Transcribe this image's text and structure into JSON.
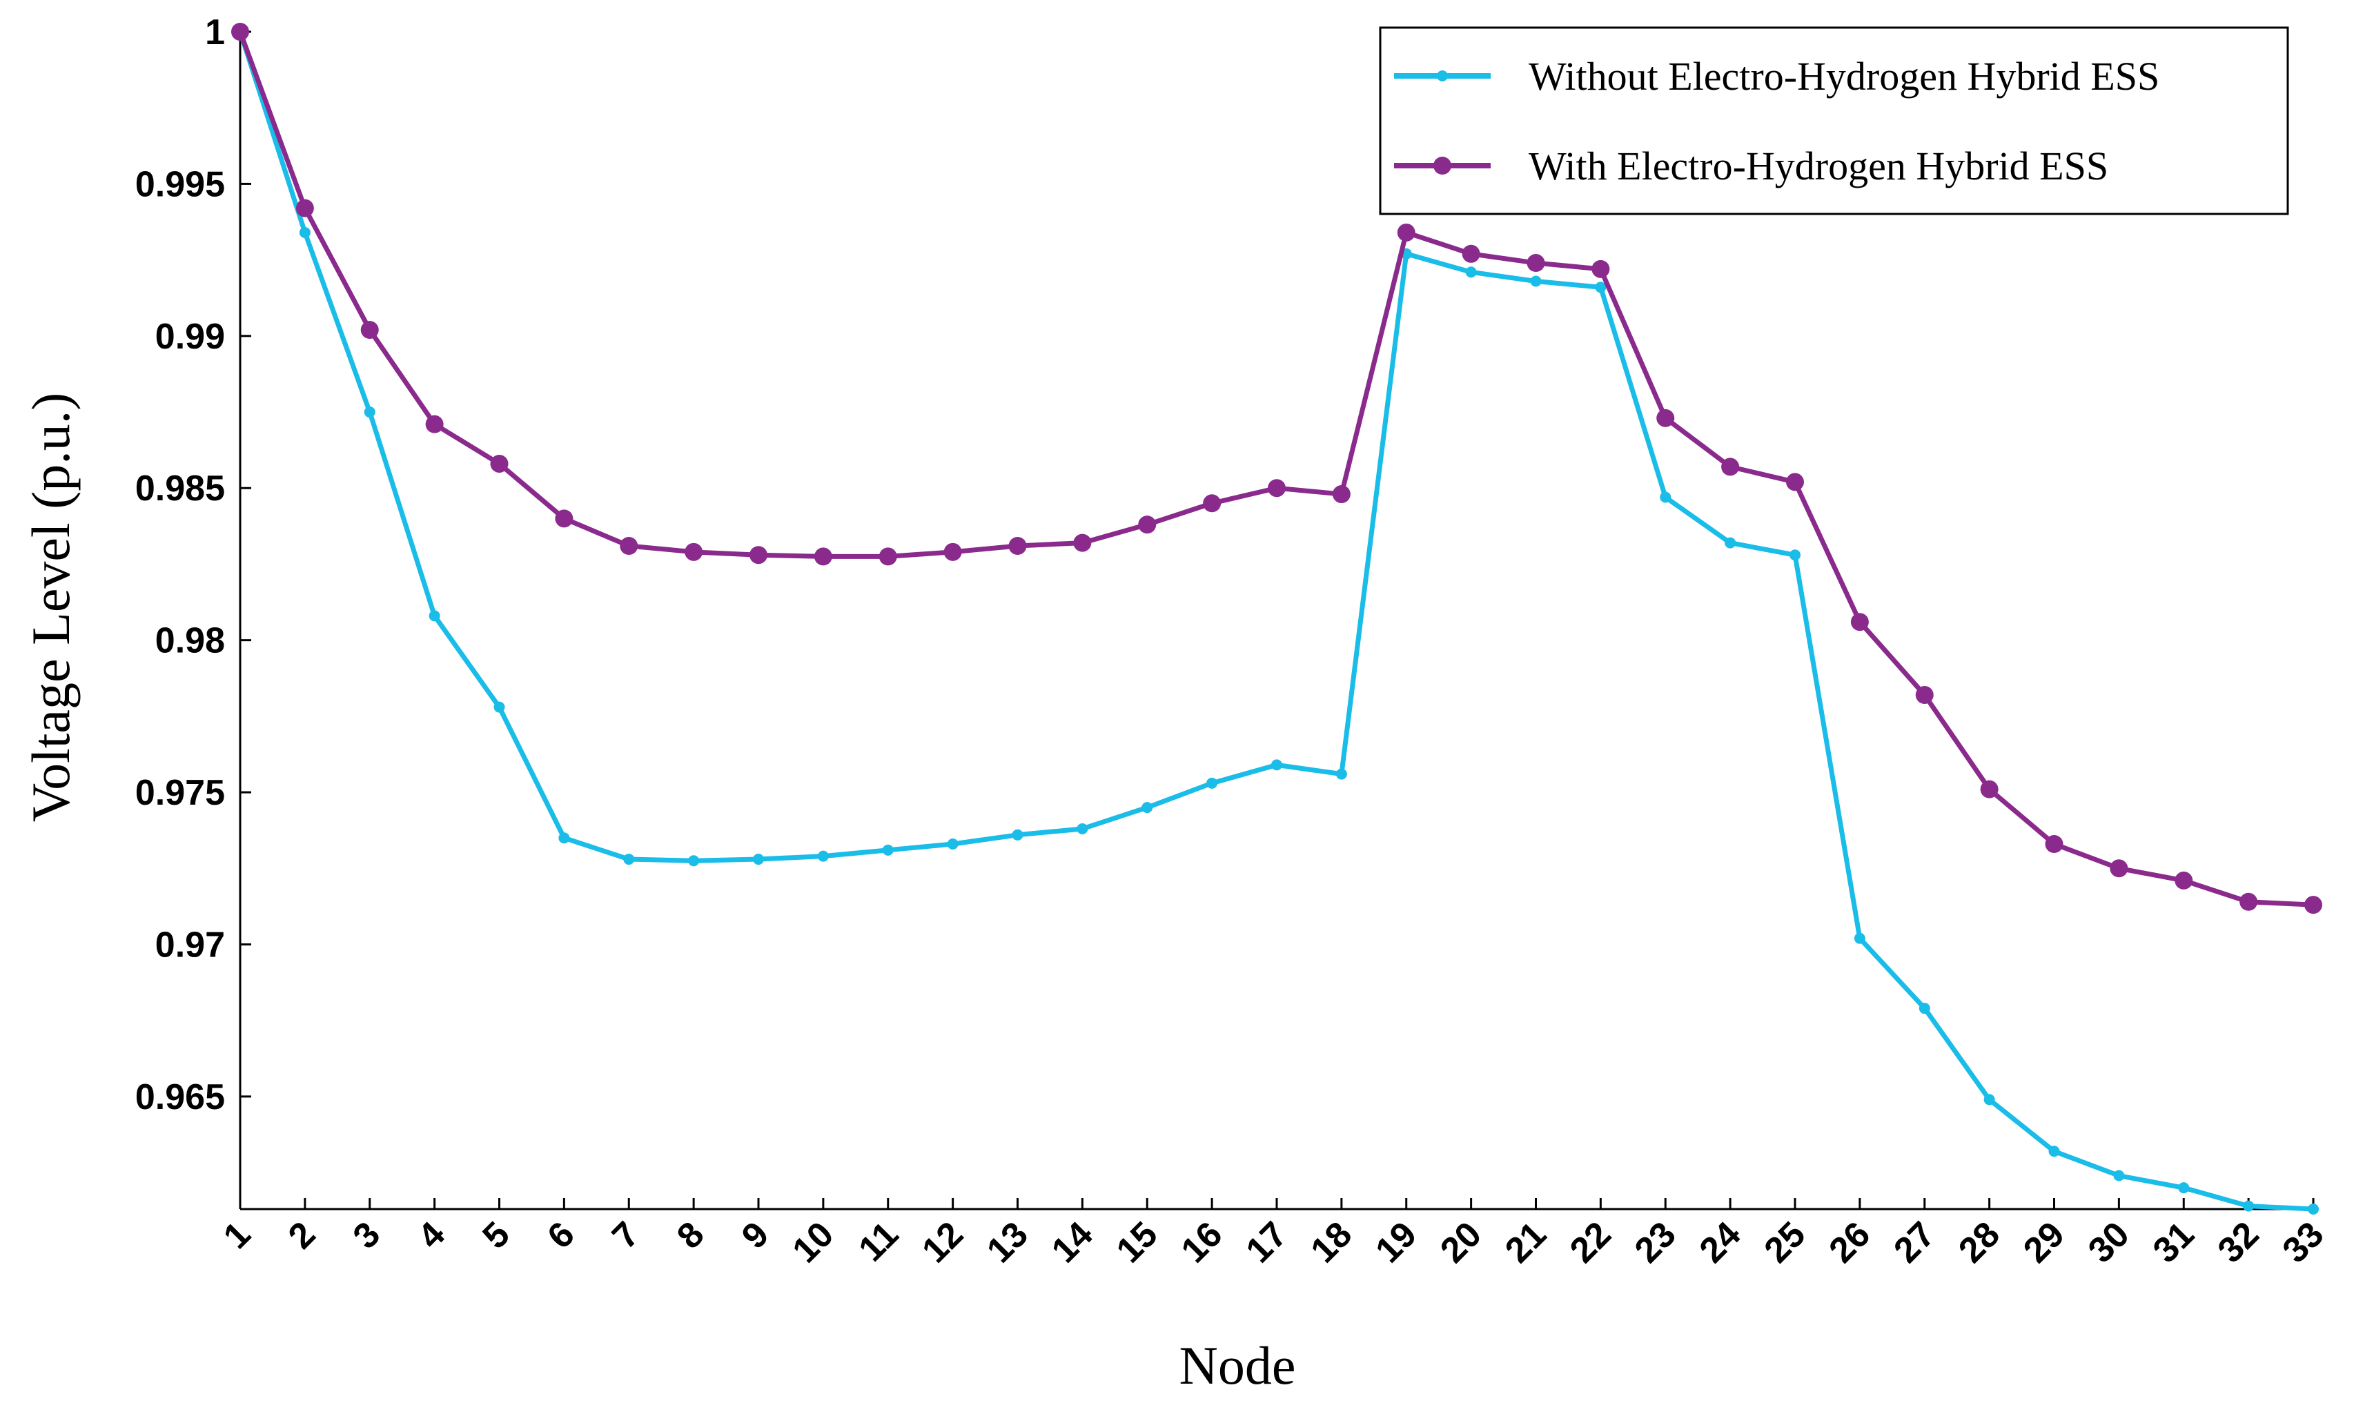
{
  "chart_data": {
    "type": "line",
    "title": "",
    "xlabel": "Node",
    "ylabel": "Voltage Level (p.u.)",
    "xlim": [
      1,
      33
    ],
    "ylim": [
      0.9613,
      1.0
    ],
    "grid": false,
    "legend_position": "top-right",
    "x": [
      1,
      2,
      3,
      4,
      5,
      6,
      7,
      8,
      9,
      10,
      11,
      12,
      13,
      14,
      15,
      16,
      17,
      18,
      19,
      20,
      21,
      22,
      23,
      24,
      25,
      26,
      27,
      28,
      29,
      30,
      31,
      32,
      33
    ],
    "x_tick_labels": [
      "1",
      "2",
      "3",
      "4",
      "5",
      "6",
      "7",
      "8",
      "9",
      "10",
      "11",
      "12",
      "13",
      "14",
      "15",
      "16",
      "17",
      "18",
      "19",
      "20",
      "21",
      "22",
      "23",
      "24",
      "25",
      "26",
      "27",
      "28",
      "29",
      "30",
      "31",
      "32",
      "33"
    ],
    "y_ticks": [
      0.965,
      0.97,
      0.975,
      0.98,
      0.985,
      0.99,
      0.995,
      1
    ],
    "y_tick_labels": [
      "0.965",
      "0.97",
      "0.975",
      "0.98",
      "0.985",
      "0.99",
      "0.995",
      "1"
    ],
    "series": [
      {
        "name": "Without Electro-Hydrogen Hybrid ESS",
        "color": "#1ABCE8",
        "marker": "small-dot",
        "values": [
          1.0,
          0.9934,
          0.9875,
          0.9808,
          0.9778,
          0.9735,
          0.9728,
          0.97275,
          0.9728,
          0.9729,
          0.9731,
          0.9733,
          0.9736,
          0.9738,
          0.9745,
          0.9753,
          0.9759,
          0.9756,
          0.9927,
          0.9921,
          0.9918,
          0.9916,
          0.9847,
          0.9832,
          0.9828,
          0.9702,
          0.9679,
          0.9649,
          0.9632,
          0.9624,
          0.962,
          0.9614,
          0.9613
        ]
      },
      {
        "name": "With Electro-Hydrogen Hybrid ESS",
        "color": "#8A2A8C",
        "marker": "large-dot",
        "values": [
          1.0,
          0.9942,
          0.9902,
          0.9871,
          0.9858,
          0.984,
          0.9831,
          0.9829,
          0.9828,
          0.98275,
          0.98275,
          0.9829,
          0.9831,
          0.9832,
          0.9838,
          0.9845,
          0.985,
          0.9848,
          0.9934,
          0.9927,
          0.9924,
          0.9922,
          0.9873,
          0.9857,
          0.9852,
          0.9806,
          0.9782,
          0.9751,
          0.9733,
          0.9725,
          0.9721,
          0.9714,
          0.9713
        ]
      }
    ]
  }
}
